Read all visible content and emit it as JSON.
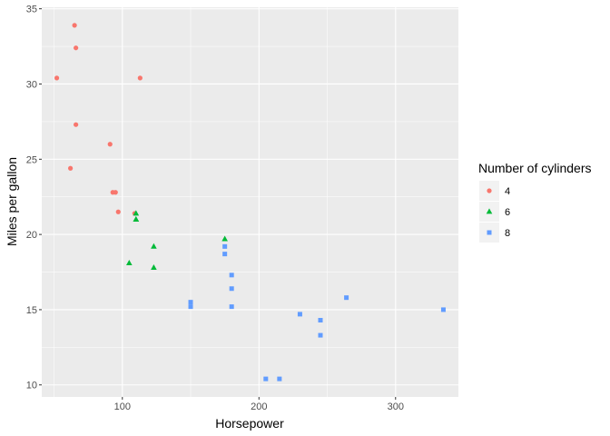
{
  "chart_data": {
    "type": "scatter",
    "xlabel": "Horsepower",
    "ylabel": "Miles per gallon",
    "xlim": [
      41,
      346
    ],
    "ylim": [
      9.2,
      35.1
    ],
    "xticks": [
      100,
      200,
      300
    ],
    "yticks": [
      10,
      15,
      20,
      25,
      30,
      35
    ],
    "grid": true,
    "legend": {
      "title": "Number of cylinders",
      "placement": "right",
      "entries": [
        {
          "label": "4",
          "color": "#F8766D",
          "shape": "circle"
        },
        {
          "label": "6",
          "color": "#00BA38",
          "shape": "triangle"
        },
        {
          "label": "8",
          "color": "#619CFF",
          "shape": "square"
        }
      ]
    },
    "series": [
      {
        "name": "4",
        "points": [
          [
            93,
            22.8
          ],
          [
            62,
            24.4
          ],
          [
            95,
            22.8
          ],
          [
            66,
            32.4
          ],
          [
            52,
            30.4
          ],
          [
            65,
            33.9
          ],
          [
            97,
            21.5
          ],
          [
            66,
            27.3
          ],
          [
            91,
            26.0
          ],
          [
            113,
            30.4
          ],
          [
            109,
            21.4
          ]
        ]
      },
      {
        "name": "6",
        "points": [
          [
            110,
            21.0
          ],
          [
            110,
            21.0
          ],
          [
            110,
            21.4
          ],
          [
            105,
            18.1
          ],
          [
            123,
            19.2
          ],
          [
            123,
            17.8
          ],
          [
            175,
            19.7
          ]
        ]
      },
      {
        "name": "8",
        "points": [
          [
            175,
            18.7
          ],
          [
            245,
            14.3
          ],
          [
            180,
            16.4
          ],
          [
            180,
            17.3
          ],
          [
            180,
            15.2
          ],
          [
            205,
            10.4
          ],
          [
            215,
            10.4
          ],
          [
            230,
            14.7
          ],
          [
            150,
            15.5
          ],
          [
            150,
            15.2
          ],
          [
            245,
            13.3
          ],
          [
            175,
            19.2
          ],
          [
            264,
            15.8
          ],
          [
            335,
            15.0
          ]
        ]
      }
    ]
  }
}
